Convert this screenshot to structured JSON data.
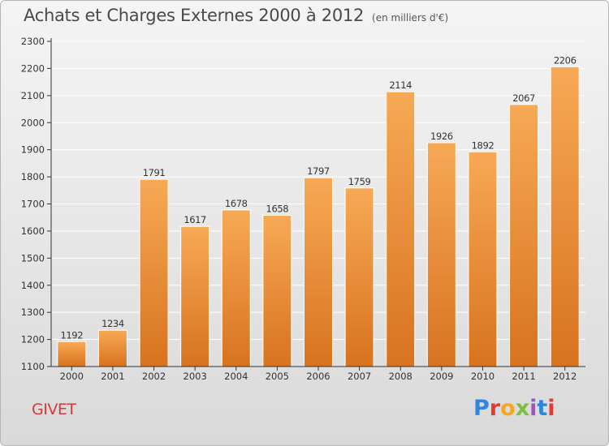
{
  "header": {
    "title": "Achats et Charges Externes 2000 à 2012",
    "unit": "(en milliers d'€)"
  },
  "footer": {
    "town": "GIVET",
    "logo_text": "Proxiti",
    "logo_colors": [
      "#2e86de",
      "#e03c31",
      "#f5a623",
      "#7bc043",
      "#9b59b6",
      "#2e86de",
      "#e03c31"
    ]
  },
  "colors": {
    "bar_top": "#f7a955",
    "bar_bottom": "#d8731f",
    "gridline": "#ffffff",
    "axis": "#333333",
    "text": "#333333",
    "town": "#d63a3a"
  },
  "chart_data": {
    "type": "bar",
    "categories": [
      "2000",
      "2001",
      "2002",
      "2003",
      "2004",
      "2005",
      "2006",
      "2007",
      "2008",
      "2009",
      "2010",
      "2011",
      "2012"
    ],
    "values": [
      1192,
      1234,
      1791,
      1617,
      1678,
      1658,
      1797,
      1759,
      2114,
      1926,
      1892,
      2067,
      2206
    ],
    "data_labels": [
      "1192",
      "1234",
      "1791",
      "1617",
      "1678",
      "1658",
      "1797",
      "1759",
      "2114",
      "1926",
      "1892",
      "2067",
      "2206"
    ],
    "yticks": [
      "1100",
      "1200",
      "1300",
      "1400",
      "1500",
      "1600",
      "1700",
      "1800",
      "1900",
      "2000",
      "2100",
      "2200",
      "2300"
    ],
    "ylim": [
      1100,
      2300
    ],
    "grid": true,
    "title": "Achats et Charges Externes 2000 à 2012",
    "xlabel": "",
    "ylabel": ""
  }
}
